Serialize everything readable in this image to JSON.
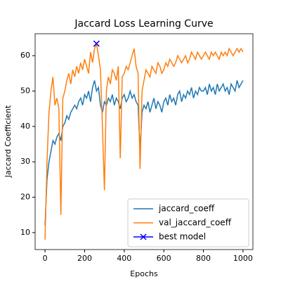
{
  "chart_data": {
    "type": "line",
    "title": "Jaccard Loss Learning Curve",
    "xlabel": "Epochs",
    "ylabel": "Jaccard Coefficient",
    "x": [
      0,
      10,
      20,
      30,
      40,
      50,
      60,
      70,
      80,
      90,
      100,
      110,
      120,
      130,
      140,
      150,
      160,
      170,
      180,
      190,
      200,
      210,
      220,
      230,
      240,
      250,
      260,
      270,
      280,
      290,
      300,
      310,
      320,
      330,
      340,
      350,
      360,
      370,
      380,
      390,
      400,
      410,
      420,
      430,
      440,
      450,
      460,
      470,
      480,
      490,
      500,
      510,
      520,
      530,
      540,
      550,
      560,
      570,
      580,
      590,
      600,
      610,
      620,
      630,
      640,
      650,
      660,
      670,
      680,
      690,
      700,
      710,
      720,
      730,
      740,
      750,
      760,
      770,
      780,
      790,
      800,
      810,
      820,
      830,
      840,
      850,
      860,
      870,
      880,
      890,
      900,
      910,
      920,
      930,
      940,
      950,
      960,
      970,
      980,
      990,
      1000
    ],
    "series": [
      {
        "name": "jaccard_coeff",
        "color": "#1f77b4",
        "values": [
          12,
          25,
          30,
          33,
          36,
          35,
          37,
          38,
          36,
          40,
          41,
          43,
          42,
          44,
          45,
          46,
          45,
          47,
          48,
          46,
          49,
          48,
          50,
          47,
          51,
          53,
          50,
          51,
          46,
          44,
          47,
          46,
          48,
          47,
          49,
          46,
          48,
          47,
          45,
          48,
          49,
          47,
          48,
          50,
          48,
          49,
          47,
          46,
          33,
          44,
          46,
          45,
          47,
          44,
          46,
          48,
          45,
          47,
          46,
          44,
          47,
          48,
          46,
          49,
          47,
          48,
          46,
          49,
          50,
          47,
          49,
          48,
          50,
          49,
          51,
          48,
          50,
          49,
          51,
          50,
          50,
          51,
          49,
          52,
          50,
          51,
          49,
          52,
          50,
          51,
          52,
          50,
          51,
          49,
          52,
          51,
          50,
          53,
          51,
          52,
          53
        ]
      },
      {
        "name": "val_jaccard_coeff",
        "color": "#ff7f0e",
        "values": [
          8,
          30,
          44,
          50,
          54,
          46,
          48,
          45,
          15,
          48,
          50,
          53,
          55,
          52,
          56,
          54,
          57,
          55,
          58,
          56,
          59,
          57,
          55,
          61,
          58,
          62,
          63.4,
          60,
          56,
          40,
          22,
          50,
          54,
          52,
          56,
          55,
          53,
          57,
          31,
          54,
          55,
          57,
          56,
          58,
          60,
          62,
          57,
          55,
          28,
          50,
          53,
          56,
          55,
          54,
          57,
          56,
          55,
          58,
          57,
          55,
          56,
          58,
          57,
          59,
          58,
          57,
          58,
          60,
          59,
          58,
          59,
          60,
          58,
          59,
          61,
          60,
          59,
          61,
          60,
          59,
          60,
          61,
          60,
          59,
          61,
          60,
          61,
          60,
          59,
          61,
          60,
          61,
          60,
          62,
          61,
          60,
          61,
          62,
          61,
          62,
          61
        ]
      },
      {
        "name": "best model",
        "color": "#0000ff",
        "marker": "x",
        "x": [
          260
        ],
        "values": [
          63.4
        ]
      }
    ],
    "xlim": [
      -50,
      1050
    ],
    "ylim": [
      5.2,
      66.2
    ],
    "xticks": [
      0,
      200,
      400,
      600,
      800,
      1000
    ],
    "yticks": [
      10,
      20,
      30,
      40,
      50,
      60
    ],
    "legend": "lower right"
  }
}
